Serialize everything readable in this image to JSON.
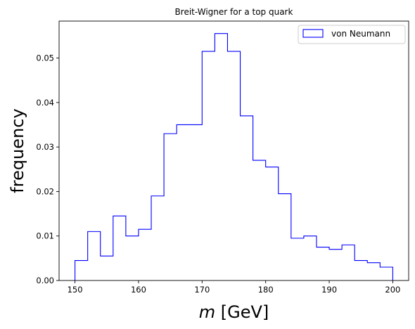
{
  "chart_data": {
    "type": "bar",
    "title": "Breit-Wigner for a top quark",
    "xlabel_italic": "m",
    "xlabel_rest": " [GeV]",
    "ylabel": "frequency",
    "series": [
      {
        "name": "von Neumann",
        "color": "#0000ff",
        "bin_edges": [
          150,
          152,
          154,
          156,
          158,
          160,
          162,
          164,
          166,
          168,
          170,
          172,
          174,
          176,
          178,
          180,
          182,
          184,
          186,
          188,
          190,
          192,
          194,
          196,
          198,
          200
        ],
        "values": [
          0.0045,
          0.011,
          0.0055,
          0.0145,
          0.01,
          0.0115,
          0.019,
          0.033,
          0.035,
          0.035,
          0.0515,
          0.0555,
          0.0515,
          0.037,
          0.027,
          0.0255,
          0.0195,
          0.0095,
          0.01,
          0.0075,
          0.007,
          0.008,
          0.0045,
          0.004,
          0.003
        ]
      }
    ],
    "xlim": [
      147.5,
      202.5
    ],
    "ylim": [
      0,
      0.0583
    ],
    "xticks": [
      150,
      160,
      170,
      180,
      190,
      200
    ],
    "yticks": [
      0.0,
      0.01,
      0.02,
      0.03,
      0.04,
      0.05
    ],
    "ytick_labels": [
      "0.00",
      "0.01",
      "0.02",
      "0.03",
      "0.04",
      "0.05"
    ],
    "grid": false,
    "legend_position": "top-right",
    "histtype": "step"
  }
}
